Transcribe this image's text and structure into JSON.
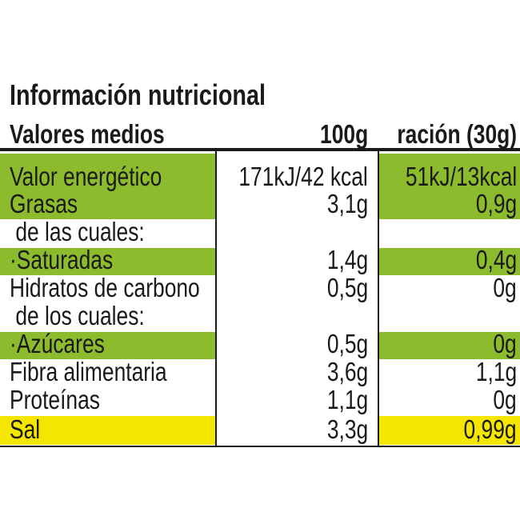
{
  "title": "Información nutricional",
  "header": {
    "label": "Valores medios",
    "per_100g": "100g",
    "per_serving": "ración (30g)"
  },
  "rows": [
    {
      "label": "Valor energético",
      "per_100g": "171kJ/42 kcal",
      "per_serving": "51kJ/13kcal",
      "highlight": "#8dbb2e"
    },
    {
      "label": "Grasas",
      "per_100g": "3,1g",
      "per_serving": "0,9g",
      "highlight": "#8dbb2e"
    },
    {
      "label": " de las cuales:"
    },
    {
      "label": "·Saturadas",
      "per_100g": "1,4g",
      "per_serving": "0,4g",
      "highlight": "#8dbb2e"
    },
    {
      "label": "Hidratos de carbono",
      "per_100g": "0,5g",
      "per_serving": "0g"
    },
    {
      "label": " de los cuales:"
    },
    {
      "label": "·Azúcares",
      "per_100g": "0,5g",
      "per_serving": "0g",
      "highlight": "#8dbb2e"
    },
    {
      "label": "Fibra alimentaria",
      "per_100g": "3,6g",
      "per_serving": "1,1g"
    },
    {
      "label": "Proteínas",
      "per_100g": "1,1g",
      "per_serving": "0g"
    },
    {
      "label": "Sal",
      "per_100g": "3,3g",
      "per_serving": "0,99g",
      "highlight": "#f4e600"
    }
  ]
}
